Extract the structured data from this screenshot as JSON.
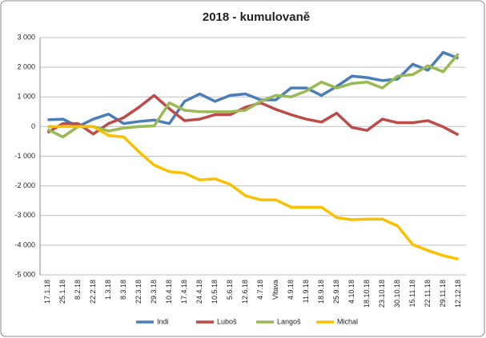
{
  "chart_data": {
    "type": "line",
    "title": "2018 - kumulovaně",
    "categories": [
      "17.1.18",
      "25.1.18",
      "8.2.18",
      "22.2.18",
      "1.3.18",
      "8.3.18",
      "22.3.18",
      "29.3.18",
      "10.4.18",
      "17.4.18",
      "24.4.18",
      "10.5.18",
      "5.6.18",
      "12.6.18",
      "4.7.18",
      "Vltava",
      "4.9.18",
      "11.9.18",
      "18.9.18",
      "25.9.18",
      "4.10.18",
      "18.10.18",
      "23.10.18",
      "30.10.18",
      "15.11.18",
      "22.11.18",
      "29.11.18",
      "12.12.18"
    ],
    "series": [
      {
        "name": "Indi",
        "color": "#4a7ebb",
        "values": [
          230,
          250,
          0,
          250,
          420,
          100,
          170,
          220,
          100,
          850,
          1100,
          850,
          1050,
          1100,
          900,
          900,
          1300,
          1300,
          1050,
          1350,
          1700,
          1650,
          1550,
          1600,
          2100,
          1900,
          2500,
          2300
        ]
      },
      {
        "name": "Luboš",
        "color": "#be4b48",
        "values": [
          -200,
          100,
          100,
          -250,
          100,
          300,
          650,
          1050,
          600,
          200,
          250,
          400,
          400,
          650,
          800,
          580,
          400,
          250,
          150,
          450,
          -30,
          -130,
          250,
          130,
          130,
          200,
          -10,
          -280
        ]
      },
      {
        "name": "Langoš",
        "color": "#98b954",
        "values": [
          -100,
          -350,
          0,
          0,
          -150,
          -50,
          0,
          20,
          800,
          550,
          500,
          500,
          500,
          550,
          850,
          1050,
          1000,
          1200,
          1500,
          1300,
          1450,
          1500,
          1300,
          1700,
          1750,
          2050,
          1850,
          2450
        ]
      },
      {
        "name": "Michal",
        "color": "#f9c000",
        "values": [
          0,
          0,
          0,
          0,
          -300,
          -350,
          -850,
          -1300,
          -1520,
          -1570,
          -1800,
          -1760,
          -1950,
          -2330,
          -2470,
          -2470,
          -2720,
          -2720,
          -2720,
          -3070,
          -3140,
          -3120,
          -3120,
          -3350,
          -3980,
          -4180,
          -4350,
          -4470
        ]
      }
    ],
    "ylim": [
      -5000,
      3000
    ],
    "yticks": [
      {
        "value": 3000,
        "label": "3 000"
      },
      {
        "value": 2000,
        "label": "2 000"
      },
      {
        "value": 1000,
        "label": "1 000"
      },
      0,
      {
        "value": -1000,
        "label": "-1 000"
      },
      {
        "value": -2000,
        "label": "-2 000"
      },
      {
        "value": -3000,
        "label": "-3 000"
      },
      {
        "value": -4000,
        "label": "-4 000"
      },
      {
        "value": -5000,
        "label": "-5 000"
      }
    ],
    "grid": true,
    "legend": "bottom"
  }
}
